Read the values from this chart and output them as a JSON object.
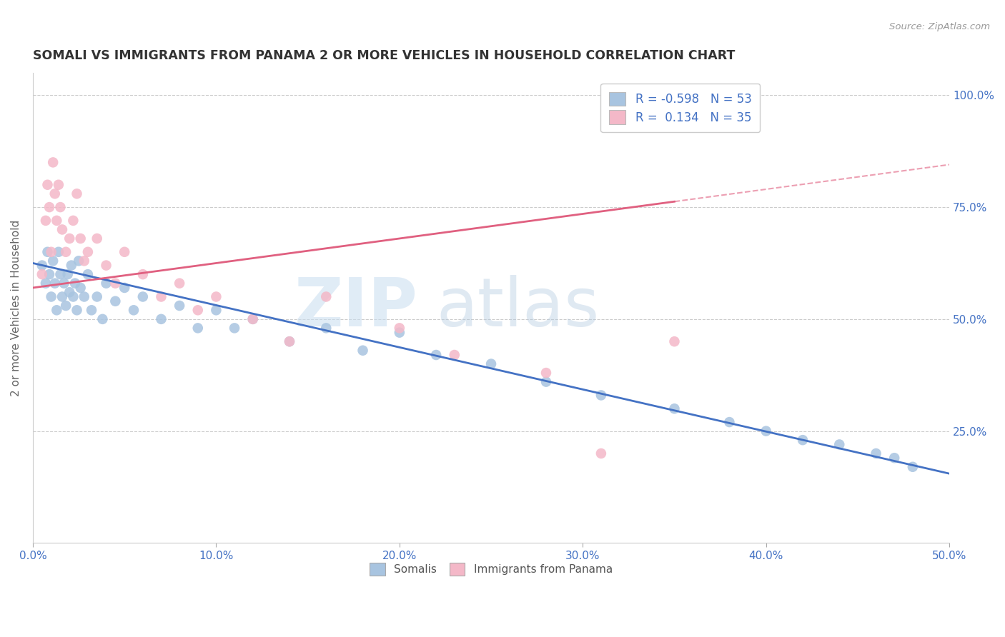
{
  "title": "SOMALI VS IMMIGRANTS FROM PANAMA 2 OR MORE VEHICLES IN HOUSEHOLD CORRELATION CHART",
  "source": "Source: ZipAtlas.com",
  "ylabel": "2 or more Vehicles in Household",
  "xlim": [
    0.0,
    0.5
  ],
  "ylim": [
    0.0,
    1.05
  ],
  "xtick_labels": [
    "0.0%",
    "10.0%",
    "20.0%",
    "30.0%",
    "40.0%",
    "50.0%"
  ],
  "xtick_vals": [
    0.0,
    0.1,
    0.2,
    0.3,
    0.4,
    0.5
  ],
  "ytick_vals": [
    0.25,
    0.5,
    0.75,
    1.0
  ],
  "right_ytick_labels": [
    "25.0%",
    "50.0%",
    "75.0%",
    "100.0%"
  ],
  "somali_R": -0.598,
  "somali_N": 53,
  "panama_R": 0.134,
  "panama_N": 35,
  "somali_color": "#a8c4e0",
  "panama_color": "#f4b8c8",
  "somali_line_color": "#4472c4",
  "panama_line_color": "#e06080",
  "somali_x": [
    0.005,
    0.007,
    0.008,
    0.009,
    0.01,
    0.011,
    0.012,
    0.013,
    0.014,
    0.015,
    0.016,
    0.017,
    0.018,
    0.019,
    0.02,
    0.021,
    0.022,
    0.023,
    0.024,
    0.025,
    0.026,
    0.028,
    0.03,
    0.032,
    0.035,
    0.038,
    0.04,
    0.045,
    0.05,
    0.055,
    0.06,
    0.07,
    0.08,
    0.09,
    0.1,
    0.11,
    0.12,
    0.14,
    0.16,
    0.18,
    0.2,
    0.22,
    0.25,
    0.28,
    0.31,
    0.35,
    0.38,
    0.4,
    0.42,
    0.44,
    0.46,
    0.47,
    0.48
  ],
  "somali_y": [
    0.62,
    0.58,
    0.65,
    0.6,
    0.55,
    0.63,
    0.58,
    0.52,
    0.65,
    0.6,
    0.55,
    0.58,
    0.53,
    0.6,
    0.56,
    0.62,
    0.55,
    0.58,
    0.52,
    0.63,
    0.57,
    0.55,
    0.6,
    0.52,
    0.55,
    0.5,
    0.58,
    0.54,
    0.57,
    0.52,
    0.55,
    0.5,
    0.53,
    0.48,
    0.52,
    0.48,
    0.5,
    0.45,
    0.48,
    0.43,
    0.47,
    0.42,
    0.4,
    0.36,
    0.33,
    0.3,
    0.27,
    0.25,
    0.23,
    0.22,
    0.2,
    0.19,
    0.17
  ],
  "panama_x": [
    0.005,
    0.007,
    0.008,
    0.009,
    0.01,
    0.011,
    0.012,
    0.013,
    0.014,
    0.015,
    0.016,
    0.018,
    0.02,
    0.022,
    0.024,
    0.026,
    0.028,
    0.03,
    0.035,
    0.04,
    0.045,
    0.05,
    0.06,
    0.07,
    0.08,
    0.09,
    0.1,
    0.12,
    0.14,
    0.16,
    0.2,
    0.23,
    0.28,
    0.31,
    0.35
  ],
  "panama_y": [
    0.6,
    0.72,
    0.8,
    0.75,
    0.65,
    0.85,
    0.78,
    0.72,
    0.8,
    0.75,
    0.7,
    0.65,
    0.68,
    0.72,
    0.78,
    0.68,
    0.63,
    0.65,
    0.68,
    0.62,
    0.58,
    0.65,
    0.6,
    0.55,
    0.58,
    0.52,
    0.55,
    0.5,
    0.45,
    0.55,
    0.48,
    0.42,
    0.38,
    0.2,
    0.45
  ]
}
